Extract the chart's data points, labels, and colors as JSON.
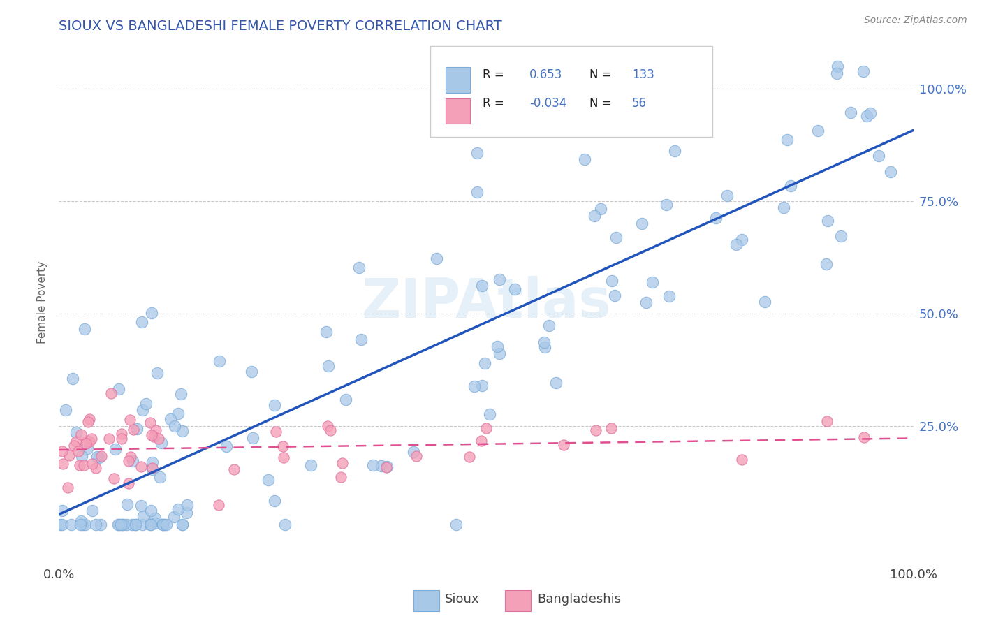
{
  "title": "SIOUX VS BANGLADESHI FEMALE POVERTY CORRELATION CHART",
  "source_text": "Source: ZipAtlas.com",
  "ylabel": "Female Poverty",
  "watermark_text": "ZIPAtlas",
  "legend_label_sioux": "Sioux",
  "legend_label_bangladeshi": "Bangladeshis",
  "r_sioux": "0.653",
  "n_sioux": "133",
  "r_bangladeshi": "-0.034",
  "n_bangladeshi": "56",
  "sioux_color": "#a8c8e8",
  "bangladeshi_color": "#f4a0b8",
  "sioux_line_color": "#2255bb",
  "bangladeshi_line_color": "#e05090",
  "background_color": "#ffffff",
  "title_color": "#3355aa",
  "grid_color": "#bbbbbb",
  "ytick_color": "#4472c4",
  "legend_r_color": "#4472c4"
}
